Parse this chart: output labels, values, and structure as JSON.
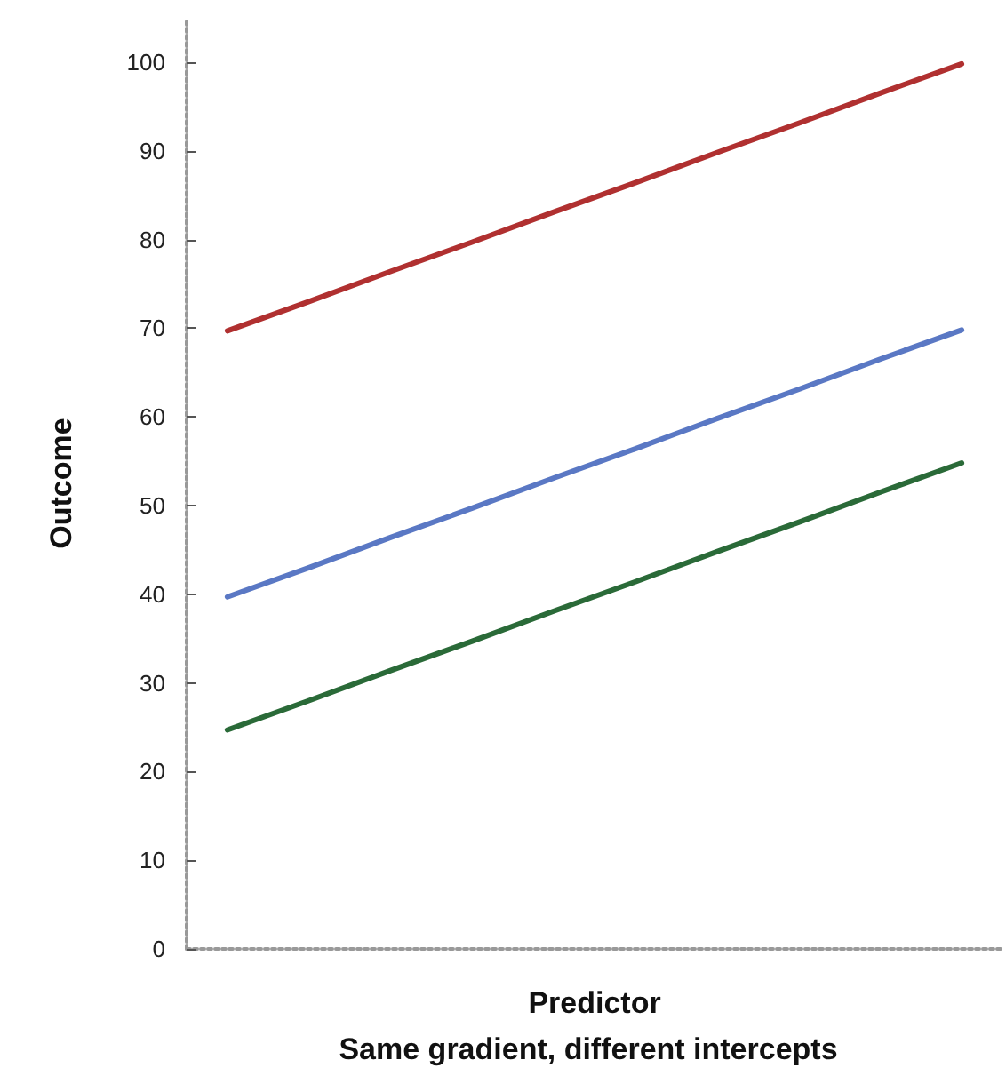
{
  "chart_data": {
    "type": "line",
    "title": "Same gradient, different intercepts",
    "xlabel": "Predictor",
    "ylabel": "Outcome",
    "categories": [
      null,
      null,
      null,
      null,
      null,
      null,
      null,
      null,
      null,
      null
    ],
    "series": [
      {
        "color": "#b03030",
        "values": [
          69.7,
          73.0,
          76.4,
          79.7,
          83.1,
          86.4,
          89.8,
          93.1,
          96.5,
          99.8
        ]
      },
      {
        "color": "#5a78c4",
        "values": [
          39.7,
          43.0,
          46.4,
          49.7,
          53.1,
          56.4,
          59.8,
          63.1,
          66.5,
          69.8
        ]
      },
      {
        "color": "#2a6a38",
        "values": [
          24.7,
          28.0,
          31.4,
          34.7,
          38.1,
          41.4,
          44.8,
          48.1,
          51.5,
          54.8
        ]
      }
    ],
    "ylim": [
      0,
      105
    ],
    "yticks": [
      0,
      10,
      20,
      30,
      40,
      50,
      60,
      70,
      80,
      90,
      100
    ],
    "grid": false,
    "marker": "none",
    "line_style": "solid"
  }
}
